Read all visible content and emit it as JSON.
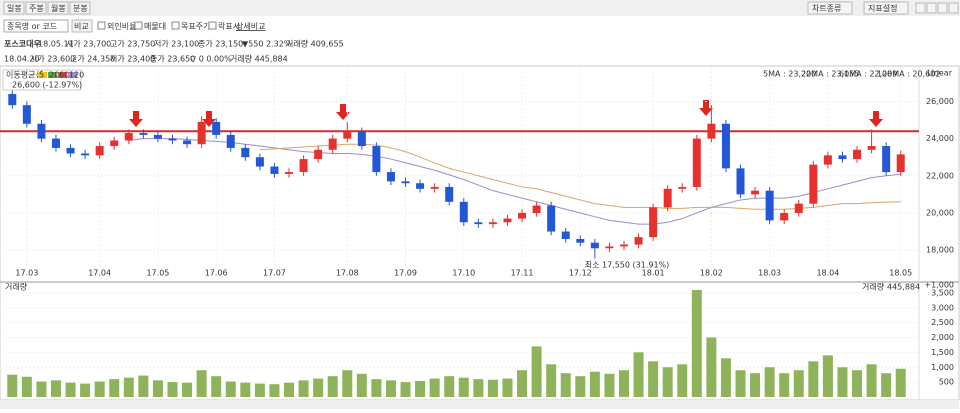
{
  "toolbar": {
    "tabs": [
      "일봉",
      "주봉",
      "월봉",
      "분봉"
    ],
    "search": "종목명 or 코드",
    "compare": "비교",
    "checks": [
      "외인비율",
      "매물대",
      "목표주가",
      "락표시"
    ],
    "detail": "상세비교",
    "right": [
      "차트종류",
      "지표설정"
    ]
  },
  "info": [
    {
      "name": "포스코대우",
      "date": "18.05.11",
      "items": [
        "시가 23,700",
        "고가 23,750",
        "저가 23,100",
        "종가 23,150",
        "▼550 2.32%",
        "거래량 409,655"
      ]
    },
    {
      "date": "18.04.20",
      "items": [
        "시가 23,600",
        "고가 24,350",
        "저가 23,400",
        "종가 23,650",
        "▽ 0 0.00%",
        "거래량 445,884"
      ]
    }
  ],
  "chart_data": [
    {
      "type": "candlestick",
      "axis_label": "Linear",
      "legend_title": "이동평균선",
      "legend_periods": [
        "5",
        "20",
        "60",
        "120"
      ],
      "ma_legend": [
        "5MA : 23,220",
        "20MA : 23,155",
        "60MA : 22,089",
        "120MA : 20,602"
      ],
      "max_label": "26,600 (-12.97%)",
      "min_label": "최소 17,550 (31.91%)",
      "categories": [
        null,
        "17.03",
        null,
        null,
        null,
        null,
        "17.04",
        null,
        null,
        null,
        "17.05",
        null,
        null,
        null,
        "17.06",
        null,
        null,
        null,
        "17.07",
        null,
        null,
        null,
        null,
        "17.08",
        null,
        null,
        null,
        "17.09",
        null,
        null,
        null,
        "17.10",
        null,
        null,
        null,
        "17.11",
        null,
        null,
        null,
        "17.12",
        null,
        null,
        null,
        null,
        "18.01",
        null,
        null,
        null,
        "18.02",
        null,
        null,
        null,
        "18.03",
        null,
        null,
        null,
        "18.04",
        null,
        null,
        null,
        null,
        "18.05"
      ],
      "open": [
        26400,
        25800,
        24800,
        24000,
        23500,
        23200,
        23100,
        23600,
        23900,
        24300,
        24200,
        24000,
        23900,
        23700,
        24900,
        24200,
        23500,
        23000,
        22500,
        22100,
        22200,
        22900,
        23400,
        24000,
        24400,
        23600,
        22200,
        21700,
        21600,
        21300,
        21400,
        20600,
        19500,
        19400,
        19500,
        19700,
        20000,
        20400,
        19000,
        18600,
        18400,
        18100,
        18200,
        18300,
        18700,
        20300,
        21300,
        21400,
        24000,
        24800,
        22400,
        21000,
        21200,
        19600,
        20000,
        20500,
        22600,
        23100,
        22900,
        23400,
        23600,
        22200
      ],
      "high": [
        26600,
        26000,
        25000,
        24200,
        23700,
        23400,
        23800,
        24100,
        24500,
        24500,
        24400,
        24200,
        24100,
        25200,
        25100,
        24400,
        23700,
        23200,
        22700,
        22400,
        23100,
        23600,
        24200,
        24900,
        24600,
        23800,
        22400,
        21900,
        21800,
        21600,
        21600,
        20800,
        19700,
        19700,
        19900,
        20200,
        20600,
        20600,
        19200,
        18800,
        18600,
        18400,
        18500,
        18900,
        20500,
        21500,
        21600,
        24200,
        25800,
        25000,
        22600,
        21400,
        21400,
        20200,
        20700,
        22800,
        23300,
        23300,
        23600,
        24500,
        23800,
        23350
      ],
      "low": [
        25600,
        24600,
        23800,
        23300,
        23000,
        22900,
        22900,
        23400,
        23700,
        24000,
        23800,
        23700,
        23500,
        23500,
        24000,
        23300,
        22800,
        22300,
        21900,
        21900,
        22000,
        22700,
        23200,
        23800,
        23400,
        22000,
        21500,
        21400,
        21100,
        21100,
        20400,
        19300,
        19200,
        19200,
        19300,
        19500,
        19800,
        18800,
        18400,
        18200,
        17550,
        17900,
        18000,
        18100,
        18500,
        20100,
        21100,
        21200,
        23800,
        22200,
        20800,
        20800,
        19400,
        19400,
        19800,
        20300,
        22400,
        22700,
        22700,
        23200,
        22000,
        22000
      ],
      "close": [
        25800,
        24800,
        24000,
        23500,
        23200,
        23100,
        23600,
        23900,
        24300,
        24200,
        24000,
        23900,
        23700,
        24900,
        24200,
        23500,
        23000,
        22500,
        22100,
        22200,
        22900,
        23400,
        24000,
        24400,
        23600,
        22200,
        21700,
        21600,
        21300,
        21400,
        20600,
        19500,
        19400,
        19500,
        19700,
        20000,
        20400,
        19000,
        18600,
        18400,
        18100,
        18200,
        18300,
        18700,
        20300,
        21300,
        21400,
        24000,
        24800,
        22400,
        21000,
        21200,
        19600,
        20000,
        20500,
        22600,
        23100,
        22900,
        23400,
        23600,
        22200,
        23150
      ],
      "up_color": "#e5322d",
      "down_color": "#2257d6",
      "series": [
        {
          "name": "60MA",
          "color": "#9d8ccb",
          "values": [
            null,
            null,
            null,
            null,
            null,
            null,
            null,
            null,
            23900,
            24000,
            24000,
            24000,
            23950,
            23900,
            23850,
            23800,
            23700,
            23600,
            23500,
            23400,
            23300,
            23250,
            23200,
            23200,
            23150,
            23050,
            22900,
            22700,
            22500,
            22300,
            22050,
            21800,
            21500,
            21200,
            21000,
            20800,
            20600,
            20400,
            20200,
            20000,
            19800,
            19600,
            19500,
            19400,
            19400,
            19500,
            19700,
            20000,
            20300,
            20500,
            20700,
            20800,
            20800,
            20800,
            20900,
            21100,
            21300,
            21500,
            21700,
            21900,
            22000,
            22089
          ]
        },
        {
          "name": "120MA",
          "color": "#dba46a",
          "values": [
            null,
            null,
            null,
            null,
            null,
            null,
            null,
            null,
            null,
            null,
            null,
            null,
            null,
            null,
            null,
            null,
            null,
            23400,
            23450,
            23500,
            23550,
            23600,
            23650,
            23700,
            23700,
            23650,
            23500,
            23300,
            23000,
            22700,
            22400,
            22200,
            22000,
            21800,
            21600,
            21400,
            21300,
            21100,
            20900,
            20700,
            20500,
            20400,
            20300,
            20300,
            20300,
            20250,
            20250,
            20300,
            20300,
            20300,
            20250,
            20200,
            20200,
            20200,
            20250,
            20300,
            20400,
            20500,
            20500,
            20550,
            20580,
            20600
          ]
        }
      ],
      "hline": {
        "value": 24400,
        "color": "#d42a2a"
      },
      "ylim": [
        17200,
        27800
      ],
      "yticks": [
        {
          "value": 18000,
          "label": "18,000"
        },
        {
          "value": 20000,
          "label": "20,000"
        },
        {
          "value": 22000,
          "label": "22,000"
        },
        {
          "value": 24000,
          "label": "24,000"
        },
        {
          "value": 26000,
          "label": "26,000"
        }
      ],
      "grid": true
    },
    {
      "type": "bar",
      "title": "거래량",
      "current_label": "거래량",
      "current_value": "445,884",
      "unit_label": "+1,000",
      "color": "#8fb35a",
      "values": [
        750,
        680,
        520,
        560,
        480,
        450,
        520,
        600,
        650,
        720,
        560,
        500,
        480,
        900,
        700,
        520,
        480,
        450,
        430,
        480,
        560,
        620,
        700,
        900,
        780,
        600,
        560,
        500,
        540,
        620,
        700,
        650,
        600,
        580,
        620,
        900,
        1700,
        1100,
        800,
        700,
        850,
        780,
        900,
        1500,
        1200,
        1000,
        1100,
        3600,
        2000,
        1300,
        900,
        800,
        1000,
        800,
        900,
        1200,
        1400,
        1000,
        900,
        1100,
        800,
        950
      ],
      "ylim": [
        0,
        3800
      ],
      "yticks": [
        500,
        {
          "value": 1000,
          "label": "1,000"
        },
        {
          "value": 1500,
          "label": "1,500"
        },
        {
          "value": 2000,
          "label": "2,000"
        },
        {
          "value": 2500,
          "label": "2,500"
        },
        {
          "value": 3000,
          "label": "3,000"
        },
        {
          "value": 3500,
          "label": "3,500"
        }
      ],
      "grid": true
    }
  ]
}
